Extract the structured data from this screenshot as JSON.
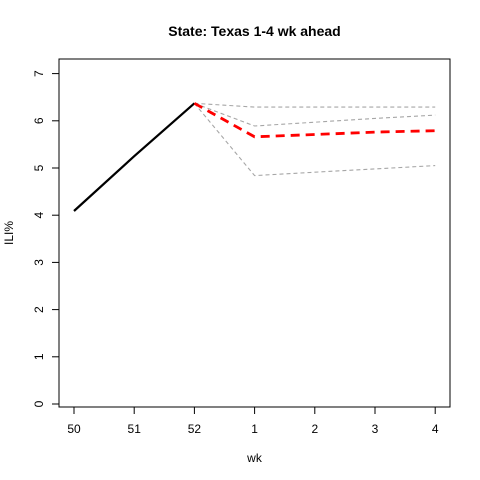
{
  "chart_data": {
    "type": "line",
    "title": "State: Texas 1-4 wk ahead",
    "xlabel": "wk",
    "ylabel": "ILI%",
    "x_tick_labels": [
      "50",
      "51",
      "52",
      "1",
      "2",
      "3",
      "4"
    ],
    "y_tick_labels": [
      "0",
      "1",
      "2",
      "3",
      "4",
      "5",
      "6",
      "7"
    ],
    "ylim": [
      0,
      7
    ],
    "grid": false,
    "legend": "none",
    "series": [
      {
        "role": "observed",
        "color": "#000000",
        "style": "solid",
        "x": [
          "50",
          "51",
          "52"
        ],
        "values": [
          4.09,
          5.25,
          6.37
        ]
      },
      {
        "role": "forecast-point",
        "color": "#ff0000",
        "style": "dashed",
        "x": [
          "52",
          "1",
          "2",
          "3",
          "4"
        ],
        "values": [
          6.37,
          5.66,
          5.71,
          5.76,
          5.79
        ]
      },
      {
        "role": "interval",
        "color": "#a6a6a6",
        "style": "dashed",
        "x": [
          "52",
          "1",
          "2",
          "3",
          "4"
        ],
        "values": [
          6.37,
          6.29,
          6.29,
          6.29,
          6.29
        ]
      },
      {
        "role": "interval",
        "color": "#a6a6a6",
        "style": "dashed",
        "x": [
          "52",
          "1",
          "2",
          "3",
          "4"
        ],
        "values": [
          6.37,
          5.89,
          5.97,
          6.05,
          6.12
        ]
      },
      {
        "role": "interval",
        "color": "#a6a6a6",
        "style": "dashed",
        "x": [
          "52",
          "1",
          "2",
          "3",
          "4"
        ],
        "values": [
          6.37,
          4.84,
          4.91,
          4.98,
          5.05
        ]
      }
    ]
  }
}
